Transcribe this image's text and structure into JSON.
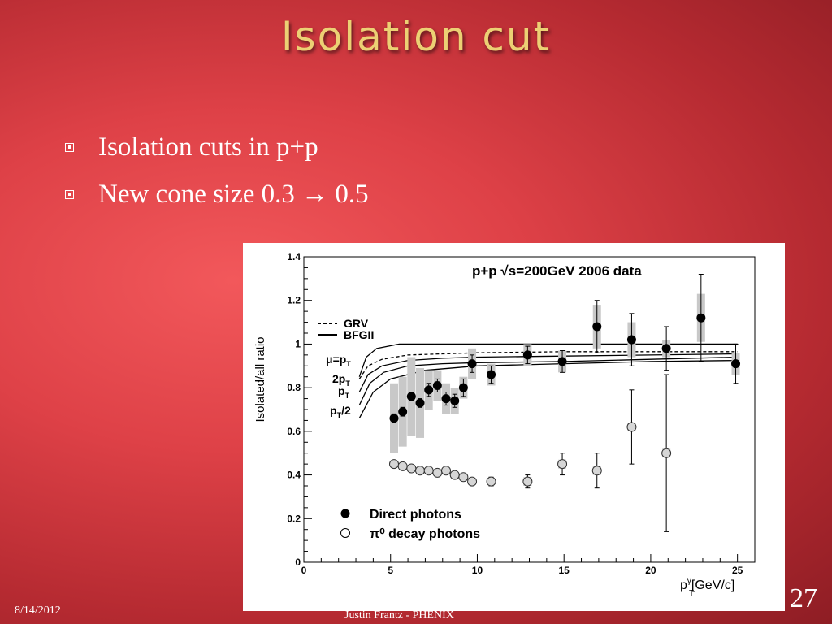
{
  "slide": {
    "title": "Isolation cut",
    "bullets": [
      {
        "text": "Isolation cuts in p+p"
      },
      {
        "text": "New cone size 0.3 → 0.5"
      }
    ],
    "footer": {
      "date": "8/14/2012",
      "author": "Justin Frantz - PHENIX"
    },
    "slide_number": "27"
  },
  "chart_data": {
    "type": "scatter",
    "title": "p+p  √s=200GeV 2006 data",
    "xlabel": "p_T^γ[GeV/c]",
    "ylabel": "Isolated/all ratio",
    "xlim": [
      0,
      26
    ],
    "ylim": [
      0,
      1.4
    ],
    "x_ticks": [
      0,
      5,
      10,
      15,
      20,
      25
    ],
    "y_ticks": [
      0,
      0.2,
      0.4,
      0.6,
      0.8,
      1,
      1.2,
      1.4
    ],
    "grid": false,
    "legend_position": "bottom-left",
    "series": [
      {
        "name": "Direct photons",
        "marker": "filled-circle",
        "color": "#000000",
        "x": [
          5.2,
          5.7,
          6.2,
          6.7,
          7.2,
          7.7,
          8.2,
          8.7,
          9.2,
          9.7,
          10.8,
          12.9,
          14.9,
          16.9,
          18.9,
          20.9,
          22.9,
          24.9
        ],
        "y": [
          0.66,
          0.69,
          0.76,
          0.73,
          0.79,
          0.81,
          0.75,
          0.74,
          0.8,
          0.91,
          0.86,
          0.95,
          0.92,
          1.08,
          1.02,
          0.98,
          1.12,
          0.91
        ],
        "stat_err": [
          0.02,
          0.02,
          0.02,
          0.02,
          0.03,
          0.03,
          0.03,
          0.03,
          0.04,
          0.04,
          0.04,
          0.04,
          0.05,
          0.12,
          0.12,
          0.1,
          0.2,
          0.09
        ],
        "sys_err": [
          0.16,
          0.16,
          0.18,
          0.16,
          0.09,
          0.07,
          0.07,
          0.06,
          0.05,
          0.07,
          0.05,
          0.05,
          0.05,
          0.1,
          0.08,
          0.04,
          0.11,
          0.05
        ]
      },
      {
        "name": "π⁰ decay photons",
        "marker": "open-circle",
        "color": "#000000",
        "x": [
          5.2,
          5.7,
          6.2,
          6.7,
          7.2,
          7.7,
          8.2,
          8.7,
          9.2,
          9.7,
          10.8,
          12.9,
          14.9,
          16.9,
          18.9,
          20.9
        ],
        "y": [
          0.45,
          0.44,
          0.43,
          0.42,
          0.42,
          0.41,
          0.42,
          0.4,
          0.39,
          0.37,
          0.37,
          0.37,
          0.45,
          0.42,
          0.62,
          0.5
        ],
        "stat_err": [
          0.01,
          0.01,
          0.01,
          0.01,
          0.01,
          0.01,
          0.01,
          0.01,
          0.01,
          0.01,
          0.02,
          0.03,
          0.05,
          0.08,
          0.17,
          0.36
        ],
        "sys_err": [
          0.01,
          0.01,
          0.01,
          0.01,
          0.01,
          0.01,
          0.01,
          0.01,
          0.01,
          0.01,
          0.01,
          0.02,
          0.02,
          0.02,
          0.02,
          0.02
        ]
      }
    ],
    "theory_curves": [
      {
        "name": "GRV",
        "style": "dashed",
        "x": [
          3.2,
          3.7,
          4.5,
          6,
          8,
          10,
          15,
          20,
          25
        ],
        "y": [
          0.84,
          0.9,
          0.93,
          0.95,
          0.955,
          0.96,
          0.965,
          0.965,
          0.965
        ]
      },
      {
        "name": "BFGII",
        "style": "solid",
        "x": [
          3.2,
          3.6,
          4.2,
          5.5,
          7,
          10,
          15,
          20,
          25
        ],
        "y": [
          0.85,
          0.94,
          0.98,
          1.0,
          1.0,
          1.0,
          1.0,
          1.0,
          1.0
        ]
      },
      {
        "name": "μ=p_T",
        "style": "solid",
        "x": [
          3.2,
          3.7,
          4.5,
          6,
          8,
          10,
          15,
          20,
          25
        ],
        "y": [
          0.78,
          0.86,
          0.9,
          0.925,
          0.935,
          0.94,
          0.945,
          0.95,
          0.955
        ]
      },
      {
        "name": "2p_T",
        "style": "solid",
        "x": [
          3.2,
          3.8,
          4.6,
          6,
          8,
          10,
          15,
          20,
          25
        ],
        "y": [
          0.72,
          0.82,
          0.87,
          0.9,
          0.91,
          0.915,
          0.92,
          0.93,
          0.94
        ]
      },
      {
        "name": "p_T/2",
        "style": "solid",
        "x": [
          3.2,
          4.0,
          5.0,
          7,
          10,
          15,
          20,
          25
        ],
        "y": [
          0.66,
          0.78,
          0.84,
          0.88,
          0.9,
          0.91,
          0.92,
          0.925
        ]
      }
    ],
    "annotations": {
      "legend_grv": "GRV",
      "legend_bfgii": "BFGII",
      "mu_eq": "μ=p",
      "mu_sub": "T",
      "two_pt": "2p",
      "two_pt_sub": "T",
      "pt": "p",
      "pt_sub": "T",
      "pt_half": "p",
      "pt_half_sub": "T",
      "pt_half_tail": "/2",
      "x_label_p": "p",
      "x_label_sup": "γ",
      "x_label_sub": "T",
      "x_label_unit": "[GeV/c]",
      "legend_direct": "Direct photons",
      "legend_decay": "π⁰ decay photons"
    }
  }
}
